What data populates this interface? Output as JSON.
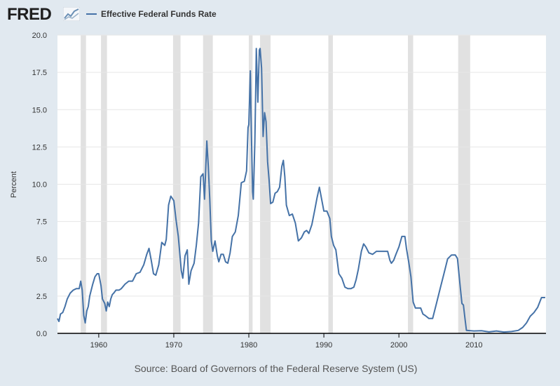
{
  "header": {
    "logo_text": "FRED",
    "logo_icon": "fred-chart-icon",
    "legend_label": "Effective Federal Funds Rate"
  },
  "source": "Source: Board of Governors of the Federal Reserve System (US)",
  "chart_data": {
    "type": "line",
    "title": "",
    "xlabel": "",
    "ylabel": "Percent",
    "xlim": [
      1954.5,
      2019.6
    ],
    "ylim": [
      0,
      20
    ],
    "yticks": [
      "0.0",
      "2.5",
      "5.0",
      "7.5",
      "10.0",
      "12.5",
      "15.0",
      "17.5",
      "20.0"
    ],
    "ytick_values": [
      0,
      2.5,
      5,
      7.5,
      10,
      12.5,
      15,
      17.5,
      20
    ],
    "xticks": [
      "1960",
      "1970",
      "1980",
      "1990",
      "2000",
      "2010"
    ],
    "xtick_values": [
      1960,
      1970,
      1980,
      1990,
      2000,
      2010
    ],
    "grid": "horizontal",
    "legend_position": "top-left",
    "colors": {
      "line": "#4572a7",
      "recession": "#e1e1e1",
      "plot_bg": "#ffffff",
      "page_bg": "#e1e9f0"
    },
    "recessions": [
      [
        1957.6,
        1958.3
      ],
      [
        1960.3,
        1961.1
      ],
      [
        1969.9,
        1970.9
      ],
      [
        1973.9,
        1975.2
      ],
      [
        1980.0,
        1980.5
      ],
      [
        1981.5,
        1982.9
      ],
      [
        1990.6,
        1991.2
      ],
      [
        2001.2,
        2001.9
      ],
      [
        2007.9,
        2009.5
      ]
    ],
    "series": [
      {
        "name": "Effective Federal Funds Rate",
        "x": [
          1954.5,
          1954.7,
          1954.9,
          1955.2,
          1955.5,
          1955.8,
          1956.2,
          1956.6,
          1957.0,
          1957.4,
          1957.6,
          1957.8,
          1958.0,
          1958.2,
          1958.4,
          1958.6,
          1958.8,
          1959.2,
          1959.5,
          1959.8,
          1960.0,
          1960.3,
          1960.5,
          1960.8,
          1961.0,
          1961.2,
          1961.4,
          1961.6,
          1961.8,
          1962.0,
          1962.3,
          1962.7,
          1963.0,
          1963.5,
          1964.0,
          1964.5,
          1965.0,
          1965.5,
          1966.0,
          1966.4,
          1966.7,
          1967.0,
          1967.3,
          1967.6,
          1968.0,
          1968.4,
          1968.8,
          1969.0,
          1969.3,
          1969.6,
          1970.0,
          1970.3,
          1970.6,
          1971.0,
          1971.2,
          1971.5,
          1971.8,
          1972.0,
          1972.3,
          1972.7,
          1973.0,
          1973.3,
          1973.6,
          1973.9,
          1974.1,
          1974.4,
          1974.6,
          1974.8,
          1975.0,
          1975.2,
          1975.5,
          1975.8,
          1976.0,
          1976.3,
          1976.6,
          1976.9,
          1977.2,
          1977.5,
          1977.8,
          1978.2,
          1978.6,
          1979.0,
          1979.4,
          1979.7,
          1979.9,
          1980.0,
          1980.2,
          1980.3,
          1980.5,
          1980.6,
          1980.8,
          1980.9,
          1981.0,
          1981.2,
          1981.4,
          1981.5,
          1981.7,
          1981.9,
          1982.1,
          1982.3,
          1982.5,
          1982.7,
          1982.9,
          1983.2,
          1983.5,
          1983.8,
          1984.1,
          1984.4,
          1984.6,
          1984.8,
          1985.0,
          1985.4,
          1985.8,
          1986.2,
          1986.6,
          1987.0,
          1987.4,
          1987.7,
          1988.0,
          1988.4,
          1988.8,
          1989.1,
          1989.4,
          1989.7,
          1990.0,
          1990.4,
          1990.8,
          1991.0,
          1991.3,
          1991.6,
          1992.0,
          1992.4,
          1992.8,
          1993.2,
          1993.6,
          1994.0,
          1994.3,
          1994.6,
          1995.0,
          1995.3,
          1995.6,
          1996.0,
          1996.5,
          1997.0,
          1997.5,
          1998.0,
          1998.5,
          1998.8,
          1999.0,
          1999.3,
          1999.6,
          2000.0,
          2000.4,
          2000.8,
          2001.0,
          2001.3,
          2001.6,
          2001.9,
          2002.2,
          2002.6,
          2002.9,
          2003.2,
          2003.5,
          2004.0,
          2004.5,
          2005.0,
          2005.5,
          2006.0,
          2006.5,
          2007.0,
          2007.5,
          2007.8,
          2008.0,
          2008.2,
          2008.4,
          2008.6,
          2008.8,
          2009.0,
          2010.0,
          2011.0,
          2012.0,
          2013.0,
          2014.0,
          2015.0,
          2015.9,
          2016.5,
          2017.0,
          2017.5,
          2018.0,
          2018.5,
          2019.0,
          2019.5
        ],
        "values": [
          1.0,
          0.8,
          1.3,
          1.4,
          1.8,
          2.3,
          2.7,
          2.9,
          3.0,
          3.0,
          3.5,
          2.9,
          1.2,
          0.7,
          1.5,
          1.8,
          2.5,
          3.3,
          3.8,
          4.0,
          4.0,
          3.2,
          2.3,
          2.0,
          1.5,
          2.1,
          1.8,
          2.3,
          2.6,
          2.7,
          2.9,
          2.9,
          3.0,
          3.3,
          3.5,
          3.5,
          4.0,
          4.1,
          4.6,
          5.3,
          5.7,
          4.9,
          4.0,
          3.9,
          4.6,
          6.1,
          5.9,
          6.3,
          8.6,
          9.2,
          8.9,
          7.6,
          6.5,
          4.2,
          3.7,
          5.2,
          5.6,
          3.3,
          4.2,
          4.7,
          5.9,
          7.4,
          10.5,
          10.7,
          9.0,
          12.9,
          11.2,
          9.0,
          6.2,
          5.5,
          6.2,
          5.2,
          4.8,
          5.3,
          5.3,
          4.8,
          4.7,
          5.4,
          6.5,
          6.8,
          7.9,
          10.1,
          10.2,
          10.9,
          13.8,
          14.0,
          17.6,
          14.5,
          9.5,
          9.0,
          12.8,
          15.9,
          19.1,
          15.5,
          19.0,
          19.1,
          17.8,
          13.2,
          14.8,
          14.2,
          11.5,
          10.3,
          8.7,
          8.8,
          9.4,
          9.5,
          9.8,
          11.2,
          11.6,
          10.5,
          8.6,
          7.9,
          8.0,
          7.4,
          6.2,
          6.4,
          6.8,
          6.9,
          6.7,
          7.3,
          8.3,
          9.1,
          9.8,
          9.0,
          8.2,
          8.2,
          7.7,
          6.5,
          5.9,
          5.6,
          4.0,
          3.7,
          3.1,
          3.0,
          3.0,
          3.1,
          3.6,
          4.3,
          5.5,
          6.0,
          5.8,
          5.4,
          5.3,
          5.5,
          5.5,
          5.5,
          5.5,
          4.9,
          4.7,
          4.9,
          5.3,
          5.8,
          6.5,
          6.5,
          5.7,
          4.8,
          3.8,
          2.1,
          1.7,
          1.7,
          1.7,
          1.3,
          1.2,
          1.0,
          1.0,
          2.0,
          3.0,
          4.0,
          5.0,
          5.25,
          5.26,
          5.02,
          4.0,
          3.0,
          2.0,
          1.9,
          1.0,
          0.2,
          0.16,
          0.18,
          0.1,
          0.16,
          0.09,
          0.12,
          0.2,
          0.4,
          0.7,
          1.15,
          1.4,
          1.75,
          2.4,
          2.4
        ]
      }
    ]
  }
}
